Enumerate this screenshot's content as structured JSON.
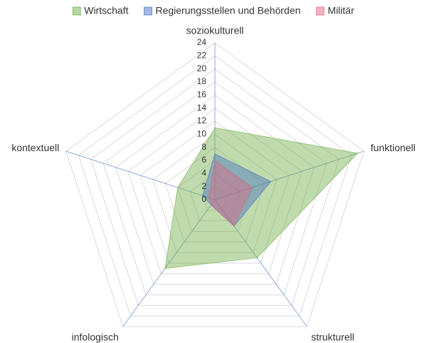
{
  "chart_data": {
    "type": "radar",
    "categories": [
      "soziokulturell",
      "funktionell",
      "strukturell",
      "infologisch",
      "kontextuell"
    ],
    "series": [
      {
        "name": "Wirtschaft",
        "color": "#70ad47",
        "values": [
          11,
          23,
          11,
          13,
          6
        ]
      },
      {
        "name": "Regierungsstellen und Behörden",
        "color": "#4472c4",
        "values": [
          7,
          9,
          5,
          1,
          2
        ]
      },
      {
        "name": "Militär",
        "color": "#e06680",
        "values": [
          6,
          6,
          5,
          1,
          1
        ]
      }
    ],
    "rlim": [
      0,
      24
    ],
    "rticks": [
      0,
      2,
      4,
      6,
      8,
      10,
      12,
      14,
      16,
      18,
      20,
      22,
      24
    ],
    "grid": true,
    "legend": "top"
  }
}
